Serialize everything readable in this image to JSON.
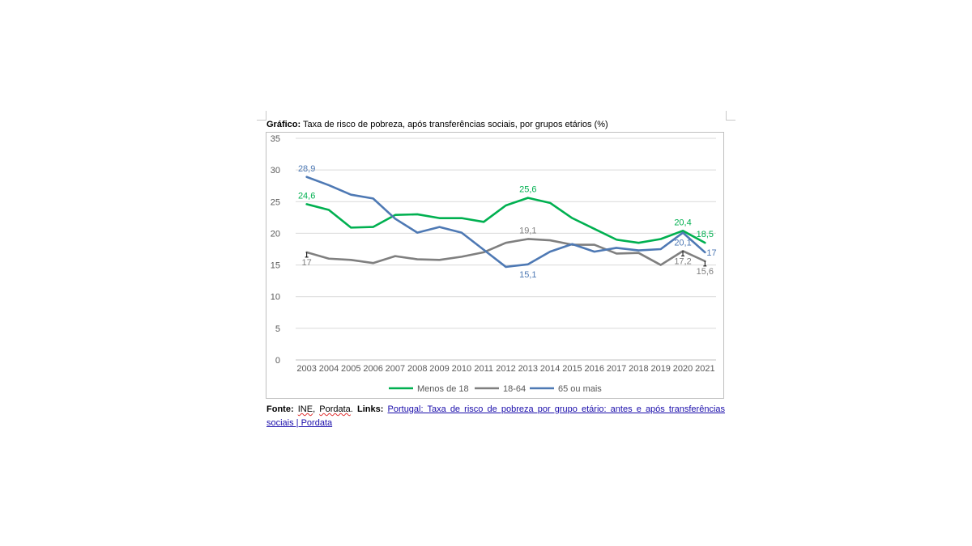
{
  "caption": {
    "bold": "Gráfico:",
    "text": " Taxa de risco de pobreza, após transferências sociais, por grupos etários (%)"
  },
  "source": {
    "label": "Fonte:",
    "src1": "INE",
    "sep1": ", ",
    "src2": "Pordata",
    "sep2": ". ",
    "links_label": "Links:",
    "link_text": "Portugal: Taxa de risco de pobreza por grupo etário: antes e após transferências sociais | Pordata"
  },
  "chart_data": {
    "type": "line",
    "title": "Taxa de risco de pobreza, após transferências sociais, por grupos etários (%)",
    "categories": [
      "2003",
      "2004",
      "2005",
      "2006",
      "2007",
      "2008",
      "2009",
      "2010",
      "2011",
      "2012",
      "2013",
      "2014",
      "2015",
      "2016",
      "2017",
      "2018",
      "2019",
      "2020",
      "2021"
    ],
    "ylim": [
      0,
      35
    ],
    "yticks": [
      "0",
      "5",
      "10",
      "15",
      "20",
      "25",
      "30",
      "35"
    ],
    "grid": true,
    "legend_position": "bottom",
    "series": [
      {
        "name": "Menos de 18",
        "color": "#00b050",
        "values": [
          24.6,
          23.7,
          20.9,
          21.0,
          22.9,
          23.0,
          22.4,
          22.4,
          21.8,
          24.4,
          25.6,
          24.8,
          22.4,
          20.7,
          19.0,
          18.5,
          19.1,
          20.4,
          18.5
        ],
        "labels": [
          {
            "index": 0,
            "text": "24,6",
            "pos": "above"
          },
          {
            "index": 10,
            "text": "25,6",
            "pos": "above"
          },
          {
            "index": 17,
            "text": "20,4",
            "pos": "above"
          },
          {
            "index": 18,
            "text": "18,5",
            "pos": "above"
          }
        ]
      },
      {
        "name": "18-64",
        "color": "#7f7f7f",
        "values": [
          17.0,
          16.0,
          15.8,
          15.3,
          16.4,
          15.9,
          15.8,
          16.3,
          17.0,
          18.5,
          19.1,
          18.9,
          18.2,
          18.2,
          16.8,
          16.9,
          15.0,
          17.2,
          15.6
        ],
        "labels": [
          {
            "index": 0,
            "text": "17",
            "pos": "below"
          },
          {
            "index": 10,
            "text": "19,1",
            "pos": "above"
          },
          {
            "index": 17,
            "text": "17,2",
            "pos": "below"
          },
          {
            "index": 18,
            "text": "15,6",
            "pos": "below"
          }
        ]
      },
      {
        "name": "65 ou mais",
        "color": "#4e79b4",
        "values": [
          28.9,
          27.6,
          26.1,
          25.5,
          22.3,
          20.1,
          21.0,
          20.1,
          17.4,
          14.7,
          15.1,
          17.1,
          18.3,
          17.1,
          17.7,
          17.3,
          17.5,
          20.1,
          17.0
        ],
        "labels": [
          {
            "index": 0,
            "text": "28,9",
            "pos": "above"
          },
          {
            "index": 10,
            "text": "15,1",
            "pos": "below"
          },
          {
            "index": 17,
            "text": "20,1",
            "pos": "below"
          },
          {
            "index": 18,
            "text": "17",
            "pos": "right"
          }
        ]
      }
    ]
  }
}
